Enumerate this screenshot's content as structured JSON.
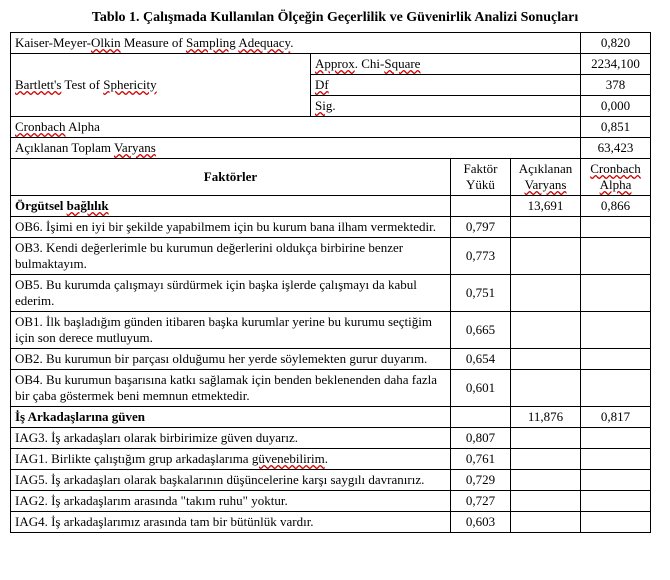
{
  "title": "Tablo 1. Çalışmada Kullanılan Ölçeğin Geçerlilik ve Güvenirlik Analizi Sonuçları",
  "top": {
    "kmo_label_a": "Kaiser-Meyer-",
    "kmo_label_b": "Olkin",
    "kmo_label_c": " Measure of ",
    "kmo_label_d": "Sampling",
    "kmo_label_e": " ",
    "kmo_label_f": "Adequacy",
    "kmo_label_g": ".",
    "kmo_val": "0,820",
    "bart_label_a": "Bartlett's",
    "bart_label_b": " Test of ",
    "bart_label_c": "Sphericity",
    "approx_a": "Approx",
    "approx_b": ". Chi-",
    "approx_c": "Square",
    "approx_val": "2234,100",
    "df_a": "Df",
    "df_val": "378",
    "sig_a": "Sig",
    "sig_b": ".",
    "sig_val": "0,000",
    "cron_a": "Cronbach",
    "cron_b": " Alpha",
    "cron_val": "0,851",
    "var_a": "Açıklanan Toplam ",
    "var_b": "Varyans",
    "var_val": "63,423"
  },
  "hdr": {
    "factors": "Faktörler",
    "load": "Faktör Yükü",
    "expl_a": "Açıklanan ",
    "expl_b": "Varyans",
    "ca_a": "Cronbach",
    "ca_b": "Alpha"
  },
  "f1": {
    "name_a": "Örgütsel ",
    "name_b": "bağlılık",
    "var": "13,691",
    "alpha": "0,866",
    "r1a": "OB6. İşimi en iyi bir şekilde yapabilmem için bu kurum bana ilham vermektedir.",
    "r1v": "0,797",
    "r2a": "OB3. Kendi değerlerimle bu kurumun değerlerini oldukça birbirine benzer bulmaktayım.",
    "r2v": "0,773",
    "r3a": "OB5. Bu kurumda çalışmayı sürdürmek için başka işlerde çalışmayı da kabul ederim.",
    "r3v": "0,751",
    "r4a": "OB1. İlk başladığım günden itibaren başka kurumlar yerine bu kurumu seçtiğim için son derece mutluyum.",
    "r4v": "0,665",
    "r5a": "OB2. Bu kurumun bir parçası olduğumu her yerde söylemekten gurur duyarım.",
    "r5v": "0,654",
    "r6a": "OB4. Bu kurumun başarısına katkı sağlamak için benden beklenenden daha fazla bir çaba göstermek beni memnun etmektedir.",
    "r6v": "0,601"
  },
  "f2": {
    "name": "İş Arkadaşlarına güven",
    "var": "11,876",
    "alpha": "0,817",
    "r1a": "IAG3. İş arkadaşları olarak birbirimize güven duyarız.",
    "r1v": "0,807",
    "r2a": "IAG1. Birlikte çalıştığım grup arkadaşlarıma ",
    "r2b": "güvenebilirim",
    "r2c": ".",
    "r2v": "0,761",
    "r3a": "IAG5. İş arkadaşları olarak başkalarının düşüncelerine karşı saygılı davranırız.",
    "r3v": "0,729",
    "r4a": "IAG2. İş arkadaşlarım arasında \"takım ruhu\" yoktur.",
    "r4v": "0,727",
    "r5a": "IAG4. İş arkadaşlarımız arasında tam bir bütünlük vardır.",
    "r5v": "0,603"
  }
}
